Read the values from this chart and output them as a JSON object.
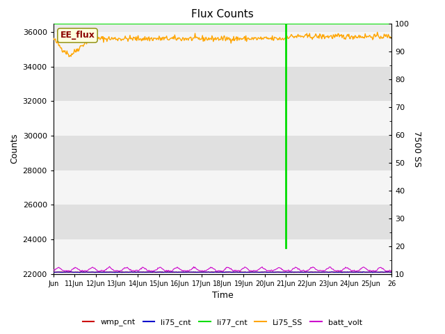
{
  "title": "Flux Counts",
  "ylabel_left": "Counts",
  "ylabel_right": "7500 SS",
  "xlabel": "Time",
  "xlim": [
    0,
    15
  ],
  "ylim_left": [
    22000,
    36500
  ],
  "ylim_right": [
    10,
    100
  ],
  "yticks_left": [
    22000,
    24000,
    26000,
    28000,
    30000,
    32000,
    34000,
    36000
  ],
  "yticks_right": [
    10,
    20,
    30,
    40,
    50,
    60,
    70,
    80,
    90,
    100
  ],
  "xtick_labels": [
    "Jun",
    "11Jun",
    "12Jun",
    "13Jun",
    "14Jun",
    "15Jun",
    "16Jun",
    "17Jun",
    "18Jun",
    "19Jun",
    "20Jun",
    "21Jun",
    "22Jun",
    "23Jun",
    "24Jun",
    "25Jun",
    "26"
  ],
  "green_line_x": 10.3,
  "green_line_ymin": 23500,
  "annotation_label": "EE_flux",
  "background_color": "#ebebeb",
  "band_color_light": "#f5f5f5",
  "band_color_dark": "#e0e0e0",
  "li77_cnt_color": "#00dd00",
  "Li75_SS_color": "#ffa500",
  "batt_volt_color": "#cc00cc",
  "wmp_cnt_color": "#cc0000",
  "li75_cnt_color": "#0000cc",
  "legend_labels": [
    "wmp_cnt",
    "li75_cnt",
    "li77_cnt",
    "Li75_SS",
    "batt_volt"
  ],
  "legend_colors": [
    "#cc0000",
    "#0000cc",
    "#00dd00",
    "#ffa500",
    "#cc00cc"
  ],
  "figsize": [
    6.4,
    4.8
  ],
  "dpi": 100
}
